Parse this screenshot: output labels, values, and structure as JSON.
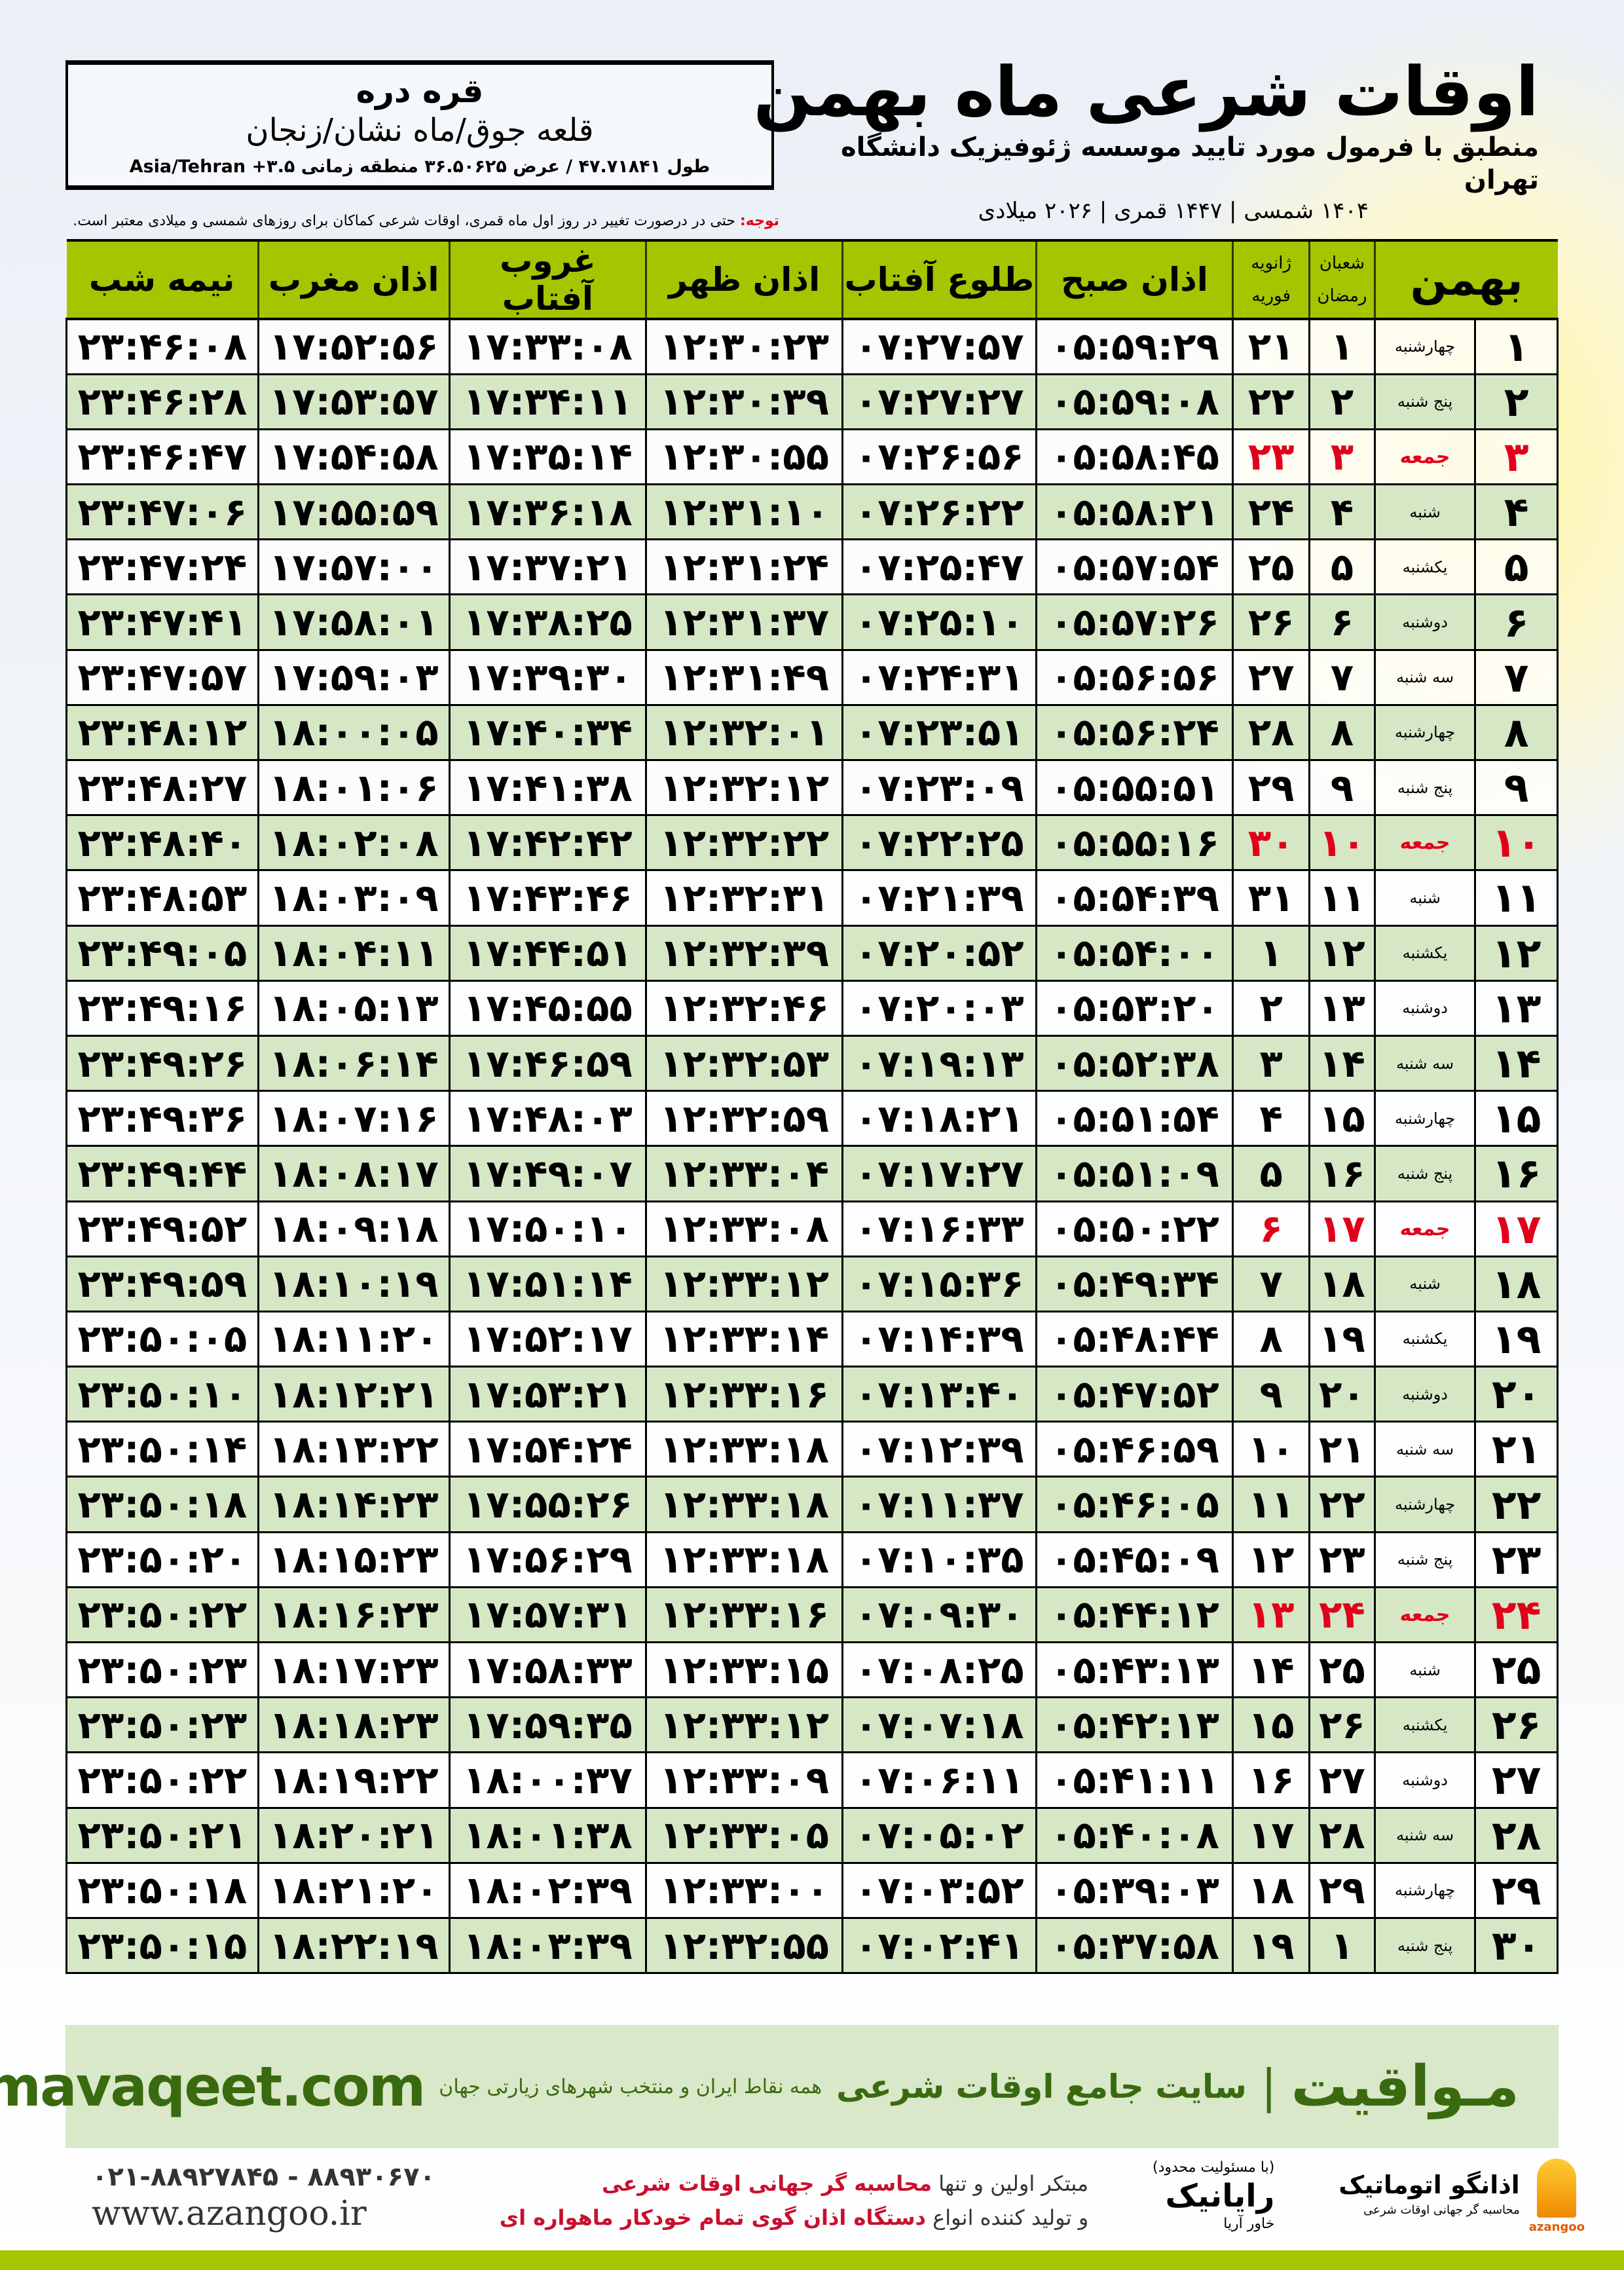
{
  "location": {
    "city": "قره دره",
    "region": "قلعه جوق/ماه نشان/زنجان",
    "coords": "طول ۴۷.۷۱۸۴۱ / عرض ۳۶.۵۰۶۲۵ منطقه زمانی ۳.۵+ Asia/Tehran"
  },
  "header": {
    "title": "اوقات شرعی ماه بهمن",
    "subtitle": "منطبق با فرمول مورد تایید موسسه ژئوفیزیک دانشگاه تهران",
    "dates": "۱۴۰۴ شمسی | ۱۴۴۷ قمری | ۲۰۲۶ میلادی"
  },
  "note": {
    "label": "توجه:",
    "text": " حتی در درصورت تغییر در روز اول ماه قمری، اوقات شرعی کماکان برای روزهای شمسی و میلادی معتبر است."
  },
  "table": {
    "columns": {
      "month": "بهمن",
      "hijri_top": "شعبان",
      "hijri_bottom": "رمضان",
      "greg_top": "ژانویه",
      "greg_bottom": "فوریه",
      "fajr": "اذان صبح",
      "sunrise": "طلوع آفتاب",
      "dhuhr": "اذان ظهر",
      "sunset": "غروب آفتاب",
      "maghrib": "اذان مغرب",
      "midnight": "نیمه شب"
    },
    "friday_color": "#e0001a",
    "rows": [
      [
        "۱",
        "چهارشنبه",
        "۱",
        "۲۱",
        "۰۵:۵۹:۲۹",
        "۰۷:۲۷:۵۷",
        "۱۲:۳۰:۲۳",
        "۱۷:۳۳:۰۸",
        "۱۷:۵۲:۵۶",
        "۲۳:۴۶:۰۸"
      ],
      [
        "۲",
        "پنج شنبه",
        "۲",
        "۲۲",
        "۰۵:۵۹:۰۸",
        "۰۷:۲۷:۲۷",
        "۱۲:۳۰:۳۹",
        "۱۷:۳۴:۱۱",
        "۱۷:۵۳:۵۷",
        "۲۳:۴۶:۲۸"
      ],
      [
        "۳",
        "جمعه",
        "۳",
        "۲۳",
        "۰۵:۵۸:۴۵",
        "۰۷:۲۶:۵۶",
        "۱۲:۳۰:۵۵",
        "۱۷:۳۵:۱۴",
        "۱۷:۵۴:۵۸",
        "۲۳:۴۶:۴۷"
      ],
      [
        "۴",
        "شنبه",
        "۴",
        "۲۴",
        "۰۵:۵۸:۲۱",
        "۰۷:۲۶:۲۲",
        "۱۲:۳۱:۱۰",
        "۱۷:۳۶:۱۸",
        "۱۷:۵۵:۵۹",
        "۲۳:۴۷:۰۶"
      ],
      [
        "۵",
        "یکشنبه",
        "۵",
        "۲۵",
        "۰۵:۵۷:۵۴",
        "۰۷:۲۵:۴۷",
        "۱۲:۳۱:۲۴",
        "۱۷:۳۷:۲۱",
        "۱۷:۵۷:۰۰",
        "۲۳:۴۷:۲۴"
      ],
      [
        "۶",
        "دوشنبه",
        "۶",
        "۲۶",
        "۰۵:۵۷:۲۶",
        "۰۷:۲۵:۱۰",
        "۱۲:۳۱:۳۷",
        "۱۷:۳۸:۲۵",
        "۱۷:۵۸:۰۱",
        "۲۳:۴۷:۴۱"
      ],
      [
        "۷",
        "سه شنبه",
        "۷",
        "۲۷",
        "۰۵:۵۶:۵۶",
        "۰۷:۲۴:۳۱",
        "۱۲:۳۱:۴۹",
        "۱۷:۳۹:۳۰",
        "۱۷:۵۹:۰۳",
        "۲۳:۴۷:۵۷"
      ],
      [
        "۸",
        "چهارشنبه",
        "۸",
        "۲۸",
        "۰۵:۵۶:۲۴",
        "۰۷:۲۳:۵۱",
        "۱۲:۳۲:۰۱",
        "۱۷:۴۰:۳۴",
        "۱۸:۰۰:۰۵",
        "۲۳:۴۸:۱۲"
      ],
      [
        "۹",
        "پنج شنبه",
        "۹",
        "۲۹",
        "۰۵:۵۵:۵۱",
        "۰۷:۲۳:۰۹",
        "۱۲:۳۲:۱۲",
        "۱۷:۴۱:۳۸",
        "۱۸:۰۱:۰۶",
        "۲۳:۴۸:۲۷"
      ],
      [
        "۱۰",
        "جمعه",
        "۱۰",
        "۳۰",
        "۰۵:۵۵:۱۶",
        "۰۷:۲۲:۲۵",
        "۱۲:۳۲:۲۲",
        "۱۷:۴۲:۴۲",
        "۱۸:۰۲:۰۸",
        "۲۳:۴۸:۴۰"
      ],
      [
        "۱۱",
        "شنبه",
        "۱۱",
        "۳۱",
        "۰۵:۵۴:۳۹",
        "۰۷:۲۱:۳۹",
        "۱۲:۳۲:۳۱",
        "۱۷:۴۳:۴۶",
        "۱۸:۰۳:۰۹",
        "۲۳:۴۸:۵۳"
      ],
      [
        "۱۲",
        "یکشنبه",
        "۱۲",
        "۱",
        "۰۵:۵۴:۰۰",
        "۰۷:۲۰:۵۲",
        "۱۲:۳۲:۳۹",
        "۱۷:۴۴:۵۱",
        "۱۸:۰۴:۱۱",
        "۲۳:۴۹:۰۵"
      ],
      [
        "۱۳",
        "دوشنبه",
        "۱۳",
        "۲",
        "۰۵:۵۳:۲۰",
        "۰۷:۲۰:۰۳",
        "۱۲:۳۲:۴۶",
        "۱۷:۴۵:۵۵",
        "۱۸:۰۵:۱۳",
        "۲۳:۴۹:۱۶"
      ],
      [
        "۱۴",
        "سه شنبه",
        "۱۴",
        "۳",
        "۰۵:۵۲:۳۸",
        "۰۷:۱۹:۱۳",
        "۱۲:۳۲:۵۳",
        "۱۷:۴۶:۵۹",
        "۱۸:۰۶:۱۴",
        "۲۳:۴۹:۲۶"
      ],
      [
        "۱۵",
        "چهارشنبه",
        "۱۵",
        "۴",
        "۰۵:۵۱:۵۴",
        "۰۷:۱۸:۲۱",
        "۱۲:۳۲:۵۹",
        "۱۷:۴۸:۰۳",
        "۱۸:۰۷:۱۶",
        "۲۳:۴۹:۳۶"
      ],
      [
        "۱۶",
        "پنج شنبه",
        "۱۶",
        "۵",
        "۰۵:۵۱:۰۹",
        "۰۷:۱۷:۲۷",
        "۱۲:۳۳:۰۴",
        "۱۷:۴۹:۰۷",
        "۱۸:۰۸:۱۷",
        "۲۳:۴۹:۴۴"
      ],
      [
        "۱۷",
        "جمعه",
        "۱۷",
        "۶",
        "۰۵:۵۰:۲۲",
        "۰۷:۱۶:۳۳",
        "۱۲:۳۳:۰۸",
        "۱۷:۵۰:۱۰",
        "۱۸:۰۹:۱۸",
        "۲۳:۴۹:۵۲"
      ],
      [
        "۱۸",
        "شنبه",
        "۱۸",
        "۷",
        "۰۵:۴۹:۳۴",
        "۰۷:۱۵:۳۶",
        "۱۲:۳۳:۱۲",
        "۱۷:۵۱:۱۴",
        "۱۸:۱۰:۱۹",
        "۲۳:۴۹:۵۹"
      ],
      [
        "۱۹",
        "یکشنبه",
        "۱۹",
        "۸",
        "۰۵:۴۸:۴۴",
        "۰۷:۱۴:۳۹",
        "۱۲:۳۳:۱۴",
        "۱۷:۵۲:۱۷",
        "۱۸:۱۱:۲۰",
        "۲۳:۵۰:۰۵"
      ],
      [
        "۲۰",
        "دوشنبه",
        "۲۰",
        "۹",
        "۰۵:۴۷:۵۲",
        "۰۷:۱۳:۴۰",
        "۱۲:۳۳:۱۶",
        "۱۷:۵۳:۲۱",
        "۱۸:۱۲:۲۱",
        "۲۳:۵۰:۱۰"
      ],
      [
        "۲۱",
        "سه شنبه",
        "۲۱",
        "۱۰",
        "۰۵:۴۶:۵۹",
        "۰۷:۱۲:۳۹",
        "۱۲:۳۳:۱۸",
        "۱۷:۵۴:۲۴",
        "۱۸:۱۳:۲۲",
        "۲۳:۵۰:۱۴"
      ],
      [
        "۲۲",
        "چهارشنبه",
        "۲۲",
        "۱۱",
        "۰۵:۴۶:۰۵",
        "۰۷:۱۱:۳۷",
        "۱۲:۳۳:۱۸",
        "۱۷:۵۵:۲۶",
        "۱۸:۱۴:۲۳",
        "۲۳:۵۰:۱۸"
      ],
      [
        "۲۳",
        "پنج شنبه",
        "۲۳",
        "۱۲",
        "۰۵:۴۵:۰۹",
        "۰۷:۱۰:۳۵",
        "۱۲:۳۳:۱۸",
        "۱۷:۵۶:۲۹",
        "۱۸:۱۵:۲۳",
        "۲۳:۵۰:۲۰"
      ],
      [
        "۲۴",
        "جمعه",
        "۲۴",
        "۱۳",
        "۰۵:۴۴:۱۲",
        "۰۷:۰۹:۳۰",
        "۱۲:۳۳:۱۶",
        "۱۷:۵۷:۳۱",
        "۱۸:۱۶:۲۳",
        "۲۳:۵۰:۲۲"
      ],
      [
        "۲۵",
        "شنبه",
        "۲۵",
        "۱۴",
        "۰۵:۴۳:۱۳",
        "۰۷:۰۸:۲۵",
        "۱۲:۳۳:۱۵",
        "۱۷:۵۸:۳۳",
        "۱۸:۱۷:۲۳",
        "۲۳:۵۰:۲۳"
      ],
      [
        "۲۶",
        "یکشنبه",
        "۲۶",
        "۱۵",
        "۰۵:۴۲:۱۳",
        "۰۷:۰۷:۱۸",
        "۱۲:۳۳:۱۲",
        "۱۷:۵۹:۳۵",
        "۱۸:۱۸:۲۳",
        "۲۳:۵۰:۲۳"
      ],
      [
        "۲۷",
        "دوشنبه",
        "۲۷",
        "۱۶",
        "۰۵:۴۱:۱۱",
        "۰۷:۰۶:۱۱",
        "۱۲:۳۳:۰۹",
        "۱۸:۰۰:۳۷",
        "۱۸:۱۹:۲۲",
        "۲۳:۵۰:۲۲"
      ],
      [
        "۲۸",
        "سه شنبه",
        "۲۸",
        "۱۷",
        "۰۵:۴۰:۰۸",
        "۰۷:۰۵:۰۲",
        "۱۲:۳۳:۰۵",
        "۱۸:۰۱:۳۸",
        "۱۸:۲۰:۲۱",
        "۲۳:۵۰:۲۱"
      ],
      [
        "۲۹",
        "چهارشنبه",
        "۲۹",
        "۱۸",
        "۰۵:۳۹:۰۳",
        "۰۷:۰۳:۵۲",
        "۱۲:۳۳:۰۰",
        "۱۸:۰۲:۳۹",
        "۱۸:۲۱:۲۰",
        "۲۳:۵۰:۱۸"
      ],
      [
        "۳۰",
        "پنج شنبه",
        "۱",
        "۱۹",
        "۰۵:۳۷:۵۸",
        "۰۷:۰۲:۴۱",
        "۱۲:۳۲:۵۵",
        "۱۸:۰۳:۳۹",
        "۱۸:۲۲:۱۹",
        "۲۳:۵۰:۱۵"
      ]
    ]
  },
  "footer": {
    "brand": "مـواقیت",
    "separator": "|",
    "tagline": "سایت جامع اوقات شرعی",
    "tagline2": "همه نقاط ایران و منتخب شهرهای زیارتی جهان",
    "url": "mavaqeet.com",
    "phone": "۰۲۱-۸۸۹۲۷۸۴۵ - ۸۸۹۳۰۶۷۰",
    "website": "www.azangoo.ir",
    "promo1_a": "مبتکر اولین و تنها ",
    "promo1_b": "محاسبه گر جهانی اوقات شرعی",
    "promo2_a": "و تولید کننده انواع ",
    "promo2_b": "دستگاه اذان گوی تمام خودکار ماهواره ای",
    "logo_azangoo": "اذانگو اتوماتیک",
    "logo_azangoo_sub": "محاسبه گر جهانی اوقات شرعی",
    "logo_azangoo_en": "azangoo",
    "logo_rayanik": "رایانیک",
    "logo_rayanik_sub": "خاور آریا",
    "logo_rayanik_note": "(با مسئولیت محدود)",
    "brand_color": "#3a6a10",
    "accent_color": "#a6c400"
  }
}
